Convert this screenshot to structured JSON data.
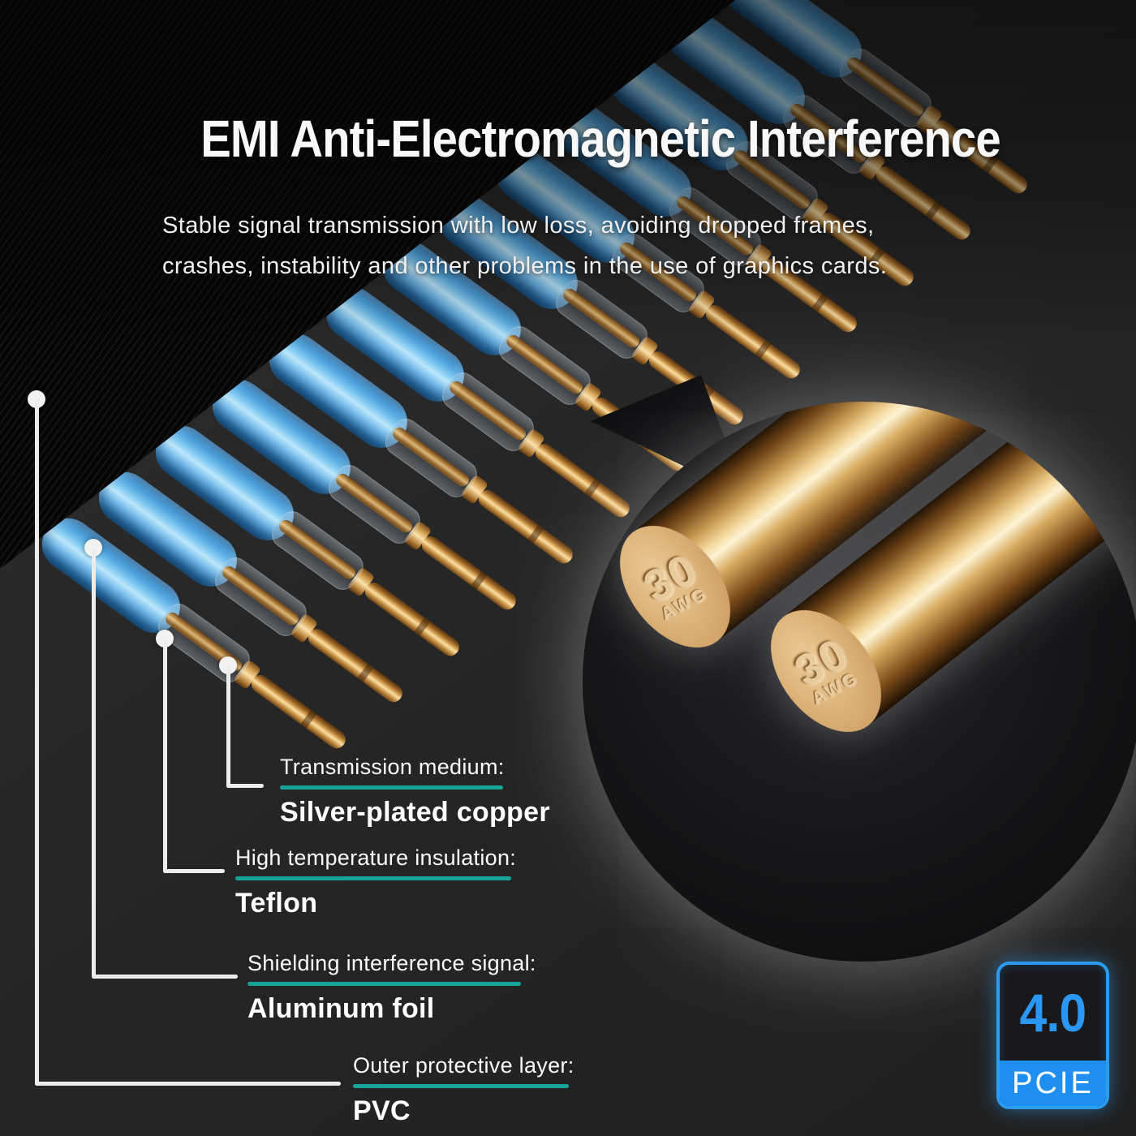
{
  "title": "EMI Anti-Electromagnetic Interference",
  "subtitle": {
    "line1": "Stable signal transmission with low loss, avoiding dropped frames,",
    "line2": "crashes, instability and other problems in the use of graphics cards."
  },
  "callouts": [
    {
      "label": "Transmission medium:",
      "value": "Silver-plated copper"
    },
    {
      "label": "High temperature insulation:",
      "value": "Teflon"
    },
    {
      "label": "Shielding interference signal:",
      "value": "Aluminum foil"
    },
    {
      "label": "Outer protective layer:",
      "value": "PVC"
    }
  ],
  "magnifier": {
    "gauge": "30",
    "unit": "AWG"
  },
  "badge": {
    "version": "4.0",
    "standard": "PCIE"
  },
  "colors": {
    "accent_teal": "#17a398",
    "badge_blue": "#2196f3",
    "wire_blue": "#5db3ef",
    "pin_gold": "#e7b469",
    "background": "#262626"
  }
}
